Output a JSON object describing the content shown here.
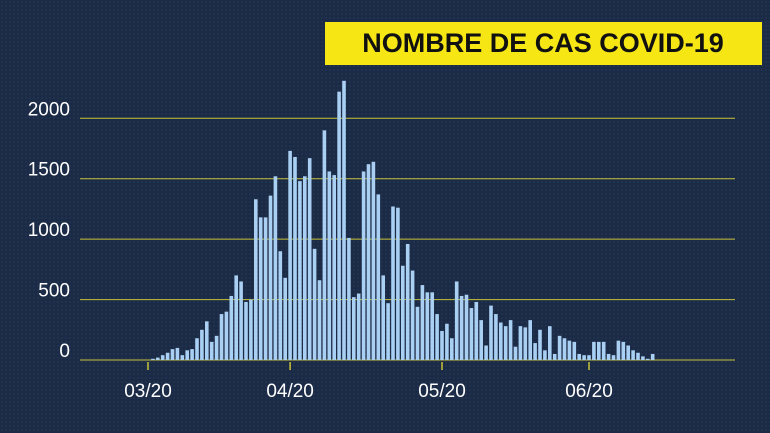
{
  "chart_data": {
    "type": "bar",
    "title": "NOMBRE DE CAS COVID-19",
    "categories": [
      "03/20",
      null,
      null,
      null,
      null,
      null,
      null,
      null,
      null,
      null,
      null,
      null,
      null,
      null,
      null,
      null,
      null,
      null,
      null,
      null,
      null,
      null,
      null,
      null,
      null,
      null,
      null,
      null,
      null,
      "04/20",
      null,
      null,
      null,
      null,
      null,
      null,
      null,
      null,
      null,
      null,
      null,
      null,
      null,
      null,
      null,
      null,
      null,
      null,
      null,
      null,
      null,
      null,
      null,
      null,
      null,
      null,
      null,
      null,
      null,
      null,
      "05/20",
      null,
      null,
      null,
      null,
      null,
      null,
      null,
      null,
      null,
      null,
      null,
      null,
      null,
      null,
      null,
      null,
      null,
      null,
      null,
      null,
      null,
      null,
      null,
      null,
      null,
      null,
      null,
      null,
      null,
      "06/20",
      null,
      null,
      null,
      null,
      null,
      null,
      null,
      null,
      null,
      null,
      null,
      null,
      null
    ],
    "values": [
      0,
      10,
      20,
      40,
      60,
      90,
      100,
      40,
      80,
      90,
      180,
      250,
      320,
      150,
      200,
      380,
      400,
      530,
      700,
      650,
      480,
      500,
      1330,
      1180,
      1180,
      1360,
      1520,
      900,
      680,
      1730,
      1680,
      1480,
      1520,
      1670,
      920,
      660,
      1900,
      1560,
      1530,
      2220,
      2310,
      1010,
      520,
      550,
      1560,
      1620,
      1640,
      1370,
      700,
      470,
      1270,
      1260,
      780,
      960,
      740,
      440,
      620,
      560,
      560,
      380,
      240,
      300,
      180,
      650,
      530,
      540,
      430,
      480,
      330,
      120,
      450,
      380,
      310,
      280,
      330,
      110,
      280,
      270,
      330,
      140,
      250,
      80,
      280,
      50,
      200,
      180,
      160,
      150,
      50,
      40,
      40,
      150,
      150,
      150,
      50,
      40,
      160,
      150,
      120,
      80,
      60,
      30,
      10,
      50
    ],
    "color": "#a9cff2",
    "ylim": [
      0,
      2300
    ],
    "yticks": [
      0,
      500,
      1000,
      1500,
      2000
    ],
    "grid": true
  }
}
